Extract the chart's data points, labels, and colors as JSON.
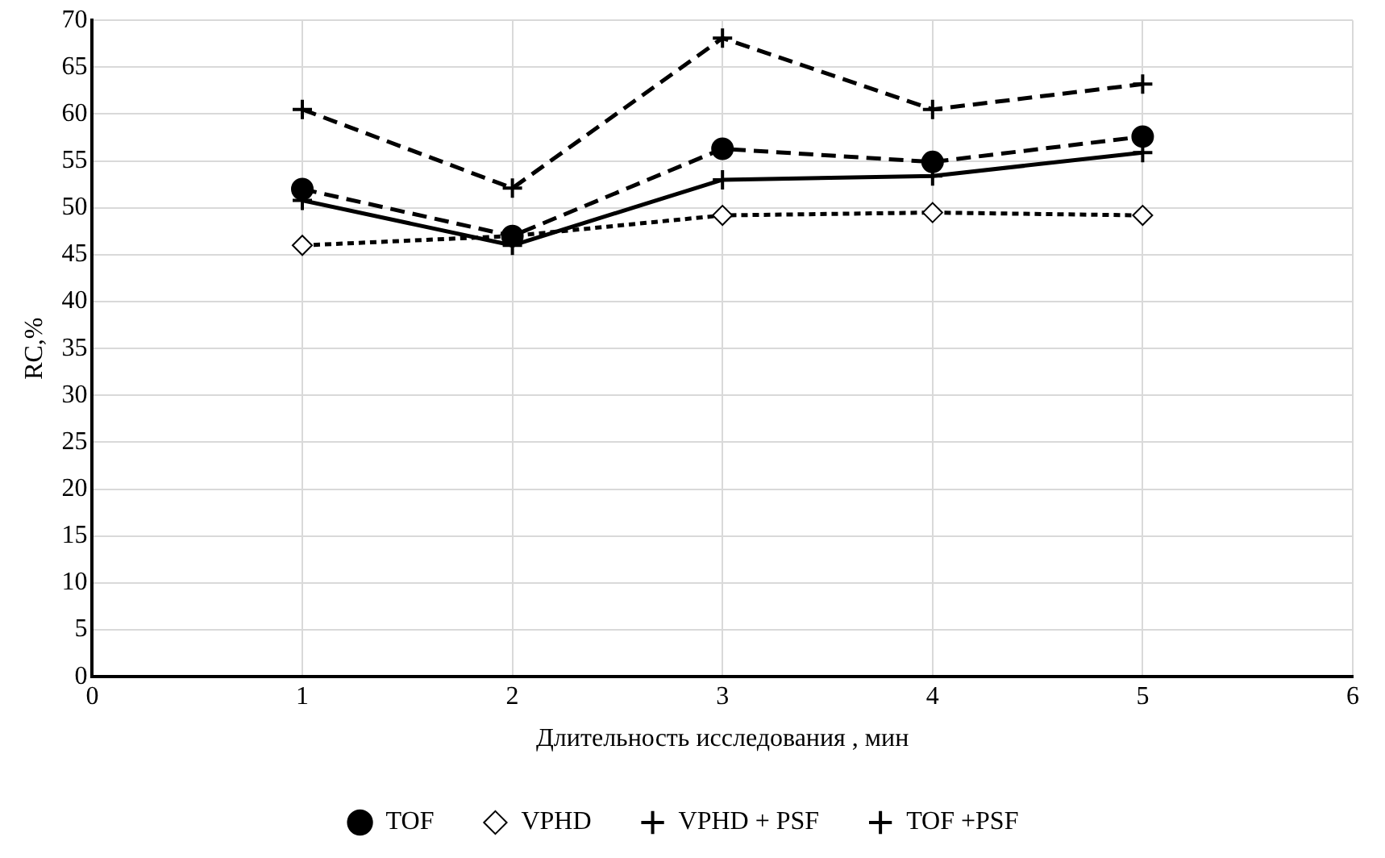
{
  "chart_data": {
    "type": "line",
    "xlabel": "Длительность исследования , мин",
    "ylabel": "RC,%",
    "x": [
      1,
      2,
      3,
      4,
      5
    ],
    "series": [
      {
        "name": "TOF",
        "color": "#000000",
        "marker": "circle",
        "line_style": "dashed",
        "values": [
          52,
          47,
          56.3,
          54.9,
          57.6
        ]
      },
      {
        "name": "VPHD",
        "color": "#000000",
        "marker": "diamond",
        "line_style": "dotted",
        "values": [
          46,
          47,
          49.2,
          49.5,
          49.2
        ]
      },
      {
        "name": "VPHD + PSF",
        "color": "#000000",
        "marker": "cross",
        "line_style": "solid",
        "values": [
          50.8,
          46,
          53,
          53.4,
          55.9
        ]
      },
      {
        "name": "TOF +PSF",
        "color": "#000000",
        "marker": "cross",
        "line_style": "dashed",
        "values": [
          60.5,
          52.1,
          68.1,
          60.5,
          63.2
        ]
      }
    ],
    "xlim": [
      0,
      6
    ],
    "xticks": [
      0,
      1,
      2,
      3,
      4,
      5,
      6
    ],
    "ylim": [
      0,
      70
    ],
    "yticks": [
      0,
      5,
      10,
      15,
      20,
      25,
      30,
      35,
      40,
      45,
      50,
      55,
      60,
      65,
      70
    ],
    "grid": true,
    "legend": "bottom"
  }
}
